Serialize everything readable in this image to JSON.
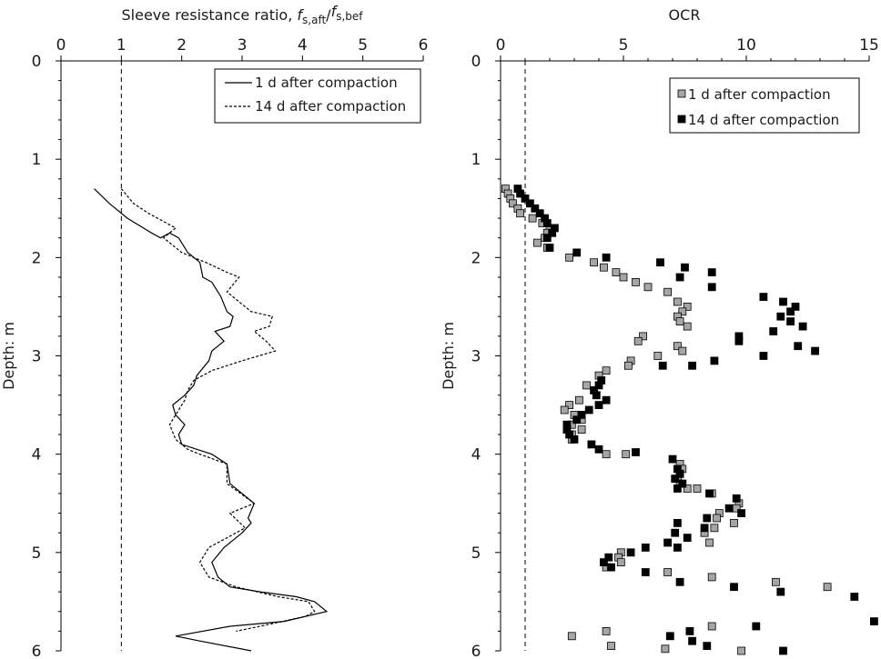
{
  "chart_data": [
    {
      "type": "line",
      "title": "",
      "xlabel_main": "Sleeve resistance ratio, ",
      "xlabel_f1": "f",
      "xlabel_f1_sub": "s,aft",
      "xlabel_slash": "/",
      "xlabel_f2": "f",
      "xlabel_f2_sub": "s,bef",
      "ylabel": "Depth: m",
      "xlim": [
        0,
        6
      ],
      "ylim": [
        0,
        6
      ],
      "y_inverted": true,
      "xticks": [
        "0",
        "1",
        "2",
        "3",
        "4",
        "5",
        "6"
      ],
      "yticks": [
        "0",
        "1",
        "2",
        "3",
        "4",
        "5",
        "6"
      ],
      "reference_line_x": 1,
      "legend_position": "top-right",
      "series": [
        {
          "name": "1 d after compaction",
          "style": "solid",
          "points": [
            [
              0.55,
              1.3
            ],
            [
              0.8,
              1.45
            ],
            [
              1.1,
              1.6
            ],
            [
              1.5,
              1.75
            ],
            [
              1.65,
              1.8
            ],
            [
              1.8,
              1.75
            ],
            [
              1.95,
              1.8
            ],
            [
              2.1,
              1.95
            ],
            [
              2.3,
              2.05
            ],
            [
              2.35,
              2.2
            ],
            [
              2.5,
              2.25
            ],
            [
              2.65,
              2.4
            ],
            [
              2.75,
              2.55
            ],
            [
              2.85,
              2.6
            ],
            [
              2.8,
              2.7
            ],
            [
              2.55,
              2.75
            ],
            [
              2.7,
              2.85
            ],
            [
              2.5,
              2.95
            ],
            [
              2.45,
              3.05
            ],
            [
              2.25,
              3.2
            ],
            [
              2.2,
              3.3
            ],
            [
              2.05,
              3.4
            ],
            [
              1.85,
              3.5
            ],
            [
              1.9,
              3.6
            ],
            [
              2.05,
              3.7
            ],
            [
              1.95,
              3.8
            ],
            [
              2.0,
              3.9
            ],
            [
              2.25,
              3.95
            ],
            [
              2.5,
              4.0
            ],
            [
              2.75,
              4.1
            ],
            [
              2.8,
              4.3
            ],
            [
              3.2,
              4.5
            ],
            [
              3.1,
              4.65
            ],
            [
              3.15,
              4.7
            ],
            [
              3.0,
              4.8
            ],
            [
              2.7,
              4.95
            ],
            [
              2.5,
              5.1
            ],
            [
              2.6,
              5.25
            ],
            [
              2.8,
              5.35
            ],
            [
              3.3,
              5.4
            ],
            [
              3.9,
              5.45
            ],
            [
              4.2,
              5.5
            ],
            [
              4.4,
              5.6
            ],
            [
              3.7,
              5.7
            ],
            [
              2.8,
              5.75
            ],
            [
              1.9,
              5.85
            ],
            [
              2.3,
              5.9
            ],
            [
              3.15,
              6.0
            ]
          ]
        },
        {
          "name": "14 d after compaction",
          "style": "dashed",
          "points": [
            [
              1.0,
              1.3
            ],
            [
              1.2,
              1.45
            ],
            [
              1.45,
              1.55
            ],
            [
              1.75,
              1.65
            ],
            [
              1.9,
              1.7
            ],
            [
              1.7,
              1.8
            ],
            [
              2.0,
              1.95
            ],
            [
              2.4,
              2.05
            ],
            [
              2.75,
              2.15
            ],
            [
              2.95,
              2.2
            ],
            [
              2.75,
              2.35
            ],
            [
              2.95,
              2.45
            ],
            [
              3.15,
              2.55
            ],
            [
              3.5,
              2.6
            ],
            [
              3.45,
              2.7
            ],
            [
              3.2,
              2.75
            ],
            [
              3.4,
              2.85
            ],
            [
              3.55,
              2.95
            ],
            [
              3.0,
              3.05
            ],
            [
              2.5,
              3.15
            ],
            [
              2.2,
              3.25
            ],
            [
              2.1,
              3.35
            ],
            [
              2.05,
              3.45
            ],
            [
              1.95,
              3.55
            ],
            [
              1.8,
              3.7
            ],
            [
              1.9,
              3.85
            ],
            [
              2.1,
              3.95
            ],
            [
              2.3,
              4.0
            ],
            [
              2.75,
              4.1
            ],
            [
              2.75,
              4.3
            ],
            [
              3.2,
              4.5
            ],
            [
              2.8,
              4.6
            ],
            [
              3.05,
              4.75
            ],
            [
              2.45,
              4.95
            ],
            [
              2.3,
              5.1
            ],
            [
              2.45,
              5.25
            ],
            [
              2.9,
              5.35
            ],
            [
              3.6,
              5.45
            ],
            [
              4.1,
              5.5
            ],
            [
              4.2,
              5.6
            ],
            [
              4.05,
              5.65
            ],
            [
              3.3,
              5.75
            ],
            [
              2.9,
              5.8
            ]
          ]
        }
      ]
    },
    {
      "type": "scatter",
      "title": "",
      "xlabel": "OCR",
      "ylabel": "Depth: m",
      "xlim": [
        0,
        15
      ],
      "ylim": [
        0,
        6
      ],
      "y_inverted": true,
      "xticks": [
        "0",
        "5",
        "10",
        "15"
      ],
      "yticks": [
        "0",
        "1",
        "2",
        "3",
        "4",
        "5",
        "6"
      ],
      "reference_line_x": 1,
      "legend_position": "top-right",
      "series": [
        {
          "name": "1 d after compaction",
          "color": "#a6a6a6",
          "points": [
            [
              0.2,
              1.3
            ],
            [
              0.3,
              1.35
            ],
            [
              0.4,
              1.4
            ],
            [
              0.5,
              1.45
            ],
            [
              0.7,
              1.5
            ],
            [
              0.8,
              1.55
            ],
            [
              1.3,
              1.6
            ],
            [
              1.7,
              1.65
            ],
            [
              2.0,
              1.7
            ],
            [
              1.9,
              1.75
            ],
            [
              1.8,
              1.8
            ],
            [
              1.5,
              1.85
            ],
            [
              1.9,
              1.9
            ],
            [
              2.8,
              2.0
            ],
            [
              3.8,
              2.05
            ],
            [
              4.2,
              2.1
            ],
            [
              4.7,
              2.15
            ],
            [
              5.0,
              2.2
            ],
            [
              5.5,
              2.25
            ],
            [
              6.0,
              2.3
            ],
            [
              6.8,
              2.35
            ],
            [
              7.2,
              2.45
            ],
            [
              7.6,
              2.5
            ],
            [
              7.4,
              2.55
            ],
            [
              7.2,
              2.6
            ],
            [
              7.3,
              2.65
            ],
            [
              7.6,
              2.7
            ],
            [
              5.8,
              2.8
            ],
            [
              5.6,
              2.85
            ],
            [
              7.2,
              2.9
            ],
            [
              7.4,
              2.95
            ],
            [
              6.4,
              3.0
            ],
            [
              5.3,
              3.05
            ],
            [
              5.2,
              3.1
            ],
            [
              4.3,
              3.15
            ],
            [
              4.0,
              3.2
            ],
            [
              3.5,
              3.3
            ],
            [
              3.2,
              3.45
            ],
            [
              2.8,
              3.5
            ],
            [
              2.6,
              3.55
            ],
            [
              3.0,
              3.6
            ],
            [
              3.3,
              3.65
            ],
            [
              2.9,
              3.7
            ],
            [
              3.3,
              3.75
            ],
            [
              2.9,
              3.8
            ],
            [
              2.9,
              3.85
            ],
            [
              4.3,
              4.0
            ],
            [
              5.1,
              4.0
            ],
            [
              7.3,
              4.1
            ],
            [
              7.4,
              4.15
            ],
            [
              7.3,
              4.2
            ],
            [
              7.2,
              4.25
            ],
            [
              7.3,
              4.3
            ],
            [
              7.6,
              4.35
            ],
            [
              8.0,
              4.35
            ],
            [
              8.6,
              4.4
            ],
            [
              9.7,
              4.5
            ],
            [
              9.6,
              4.55
            ],
            [
              8.9,
              4.6
            ],
            [
              8.8,
              4.65
            ],
            [
              9.5,
              4.7
            ],
            [
              8.7,
              4.75
            ],
            [
              8.3,
              4.8
            ],
            [
              8.5,
              4.9
            ],
            [
              4.9,
              5.0
            ],
            [
              4.8,
              5.05
            ],
            [
              4.9,
              5.1
            ],
            [
              4.3,
              5.15
            ],
            [
              6.8,
              5.2
            ],
            [
              8.6,
              5.25
            ],
            [
              11.2,
              5.3
            ],
            [
              13.3,
              5.35
            ],
            [
              8.6,
              5.75
            ],
            [
              4.3,
              5.8
            ],
            [
              2.9,
              5.85
            ],
            [
              4.5,
              5.95
            ],
            [
              6.7,
              5.98
            ],
            [
              9.8,
              6.0
            ]
          ]
        },
        {
          "name": "14 d after compaction",
          "color": "#000000",
          "points": [
            [
              0.7,
              1.3
            ],
            [
              0.8,
              1.35
            ],
            [
              1.0,
              1.4
            ],
            [
              1.2,
              1.45
            ],
            [
              1.4,
              1.5
            ],
            [
              1.6,
              1.55
            ],
            [
              1.8,
              1.6
            ],
            [
              1.9,
              1.65
            ],
            [
              2.2,
              1.7
            ],
            [
              2.1,
              1.75
            ],
            [
              1.9,
              1.8
            ],
            [
              2.0,
              1.9
            ],
            [
              3.1,
              1.95
            ],
            [
              4.3,
              2.0
            ],
            [
              6.5,
              2.05
            ],
            [
              7.5,
              2.1
            ],
            [
              8.6,
              2.15
            ],
            [
              7.3,
              2.2
            ],
            [
              8.6,
              2.3
            ],
            [
              10.7,
              2.4
            ],
            [
              11.5,
              2.45
            ],
            [
              12.0,
              2.5
            ],
            [
              11.8,
              2.55
            ],
            [
              11.4,
              2.6
            ],
            [
              11.8,
              2.65
            ],
            [
              12.3,
              2.7
            ],
            [
              11.1,
              2.75
            ],
            [
              9.7,
              2.8
            ],
            [
              9.7,
              2.85
            ],
            [
              12.1,
              2.9
            ],
            [
              12.8,
              2.95
            ],
            [
              10.7,
              3.0
            ],
            [
              8.7,
              3.05
            ],
            [
              7.8,
              3.1
            ],
            [
              6.6,
              3.1
            ],
            [
              4.1,
              3.25
            ],
            [
              4.0,
              3.3
            ],
            [
              3.8,
              3.35
            ],
            [
              3.9,
              3.4
            ],
            [
              4.3,
              3.45
            ],
            [
              4.0,
              3.5
            ],
            [
              3.6,
              3.55
            ],
            [
              3.3,
              3.6
            ],
            [
              3.1,
              3.65
            ],
            [
              2.7,
              3.7
            ],
            [
              2.7,
              3.75
            ],
            [
              2.8,
              3.8
            ],
            [
              3.0,
              3.85
            ],
            [
              3.7,
              3.9
            ],
            [
              4.0,
              3.95
            ],
            [
              5.5,
              3.98
            ],
            [
              7.0,
              4.05
            ],
            [
              7.2,
              4.15
            ],
            [
              7.3,
              4.2
            ],
            [
              7.1,
              4.25
            ],
            [
              7.4,
              4.3
            ],
            [
              7.2,
              4.35
            ],
            [
              8.5,
              4.4
            ],
            [
              9.6,
              4.45
            ],
            [
              9.3,
              4.55
            ],
            [
              9.8,
              4.6
            ],
            [
              8.4,
              4.65
            ],
            [
              7.2,
              4.7
            ],
            [
              8.3,
              4.75
            ],
            [
              7.1,
              4.8
            ],
            [
              7.6,
              4.85
            ],
            [
              6.8,
              4.9
            ],
            [
              7.2,
              4.95
            ],
            [
              5.9,
              4.95
            ],
            [
              5.3,
              5.0
            ],
            [
              4.4,
              5.05
            ],
            [
              4.2,
              5.1
            ],
            [
              4.5,
              5.15
            ],
            [
              5.9,
              5.2
            ],
            [
              7.3,
              5.3
            ],
            [
              9.5,
              5.35
            ],
            [
              11.4,
              5.4
            ],
            [
              14.4,
              5.45
            ],
            [
              15.2,
              5.7
            ],
            [
              10.4,
              5.75
            ],
            [
              7.7,
              5.8
            ],
            [
              6.9,
              5.85
            ],
            [
              7.8,
              5.9
            ],
            [
              8.4,
              5.95
            ],
            [
              11.5,
              6.0
            ]
          ]
        }
      ]
    }
  ]
}
